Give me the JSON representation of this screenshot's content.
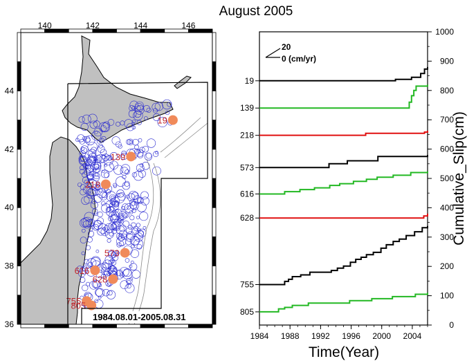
{
  "figure": {
    "title": "August 2005",
    "date_range": "1984.08.01-2005.08.31"
  },
  "colors": {
    "land": "#c0c0c0",
    "cluster": "#2a2ad0",
    "station_marker": "#f08a5a",
    "station_label": "#c0272d",
    "black_series": "#000000",
    "green_series": "#22b822",
    "red_series": "#e01010"
  },
  "chart_data": [
    {
      "type": "scatter",
      "kind": "map",
      "xlim": [
        139,
        147
      ],
      "ylim": [
        36,
        46
      ],
      "x_ticks": [
        "140",
        "142",
        "144",
        "146"
      ],
      "x_tick_values": [
        140,
        142,
        144,
        146
      ],
      "y_ticks": [
        "36",
        "38",
        "40",
        "42",
        "44"
      ],
      "y_tick_values": [
        36,
        38,
        40,
        42,
        44
      ],
      "stations": [
        {
          "label": "19",
          "lon": 145.35,
          "lat": 43.0
        },
        {
          "label": "139",
          "lon": 143.6,
          "lat": 41.75
        },
        {
          "label": "218",
          "lon": 142.55,
          "lat": 40.8
        },
        {
          "label": "573",
          "lon": 143.35,
          "lat": 38.45
        },
        {
          "label": "616",
          "lon": 142.1,
          "lat": 37.85
        },
        {
          "label": "628",
          "lon": 142.85,
          "lat": 37.55
        },
        {
          "label": "755",
          "lon": 141.75,
          "lat": 36.8
        },
        {
          "label": "805",
          "lon": 141.95,
          "lat": 36.65
        }
      ]
    },
    {
      "type": "line",
      "xlabel": "Time(Year)",
      "ylabel": "Cumulative_Slip(cm)",
      "xlim": [
        1984,
        2006
      ],
      "ylim": [
        0,
        1000
      ],
      "x_ticks": [
        "1984",
        "1988",
        "1992",
        "1996",
        "2000",
        "2004"
      ],
      "x_tick_values": [
        1984,
        1988,
        1992,
        1996,
        2000,
        2004
      ],
      "y_ticks": [
        "0",
        "100",
        "200",
        "300",
        "400",
        "500",
        "600",
        "700",
        "800",
        "900",
        "1000"
      ],
      "y_tick_values": [
        0,
        100,
        200,
        300,
        400,
        500,
        600,
        700,
        800,
        900,
        1000
      ],
      "scale": {
        "top": "20",
        "bottom": "0 (cm/yr)"
      },
      "series": [
        {
          "name": "19",
          "color": "black",
          "x": [
            1984,
            1994.6,
            2001.8,
            2003.9,
            2005.1,
            2005.6,
            2006
          ],
          "y": [
            833,
            833,
            838,
            845,
            858,
            873,
            880
          ]
        },
        {
          "name": "139",
          "color": "green",
          "x": [
            1984,
            2003.2,
            2003.6,
            2003.9,
            2004.2,
            2004.5,
            2006
          ],
          "y": [
            740,
            740,
            760,
            782,
            800,
            815,
            820
          ]
        },
        {
          "name": "218",
          "color": "red",
          "x": [
            1984,
            1990.3,
            1997.9,
            2005.6,
            2006
          ],
          "y": [
            647,
            647,
            654,
            658,
            663
          ]
        },
        {
          "name": "573",
          "color": "black",
          "x": [
            1984,
            1992.4,
            1993.1,
            1995.5,
            1999.5,
            2006
          ],
          "y": [
            537,
            537,
            550,
            560,
            575,
            580
          ]
        },
        {
          "name": "616",
          "color": "green",
          "x": [
            1984,
            1985.1,
            1987.3,
            1989.3,
            1991.2,
            1993.2,
            1994.5,
            1996.3,
            1998.0,
            1999.4,
            2001.5,
            2003.8,
            2006
          ],
          "y": [
            447,
            447,
            455,
            462,
            468,
            476,
            482,
            490,
            497,
            504,
            511,
            520,
            524
          ]
        },
        {
          "name": "628",
          "color": "red",
          "x": [
            1984,
            2000.5,
            2005.5,
            2006
          ],
          "y": [
            365,
            365,
            372,
            380
          ]
        },
        {
          "name": "755",
          "color": "black",
          "x": [
            1984,
            1986.1,
            1987.3,
            1987.8,
            1988.3,
            1989.4,
            1990.6,
            1993.4,
            1994.2,
            1995.0,
            1995.9,
            1996.6,
            1997.3,
            1998.0,
            1998.9,
            1999.9,
            2000.6,
            2001.5,
            2002.3,
            2003.2,
            2004.3,
            2005.3,
            2006
          ],
          "y": [
            138,
            138,
            149,
            156,
            165,
            171,
            180,
            186,
            194,
            201,
            214,
            224,
            231,
            240,
            248,
            262,
            274,
            285,
            293,
            305,
            318,
            332,
            338
          ]
        },
        {
          "name": "805",
          "color": "green",
          "x": [
            1984,
            1985.2,
            1986.5,
            1987.3,
            1988.3,
            1990.4,
            1995.8,
            1998.7,
            2001.4,
            2004.4,
            2006
          ],
          "y": [
            45,
            45,
            55,
            60,
            67,
            75,
            83,
            90,
            97,
            105,
            110
          ]
        }
      ]
    }
  ]
}
